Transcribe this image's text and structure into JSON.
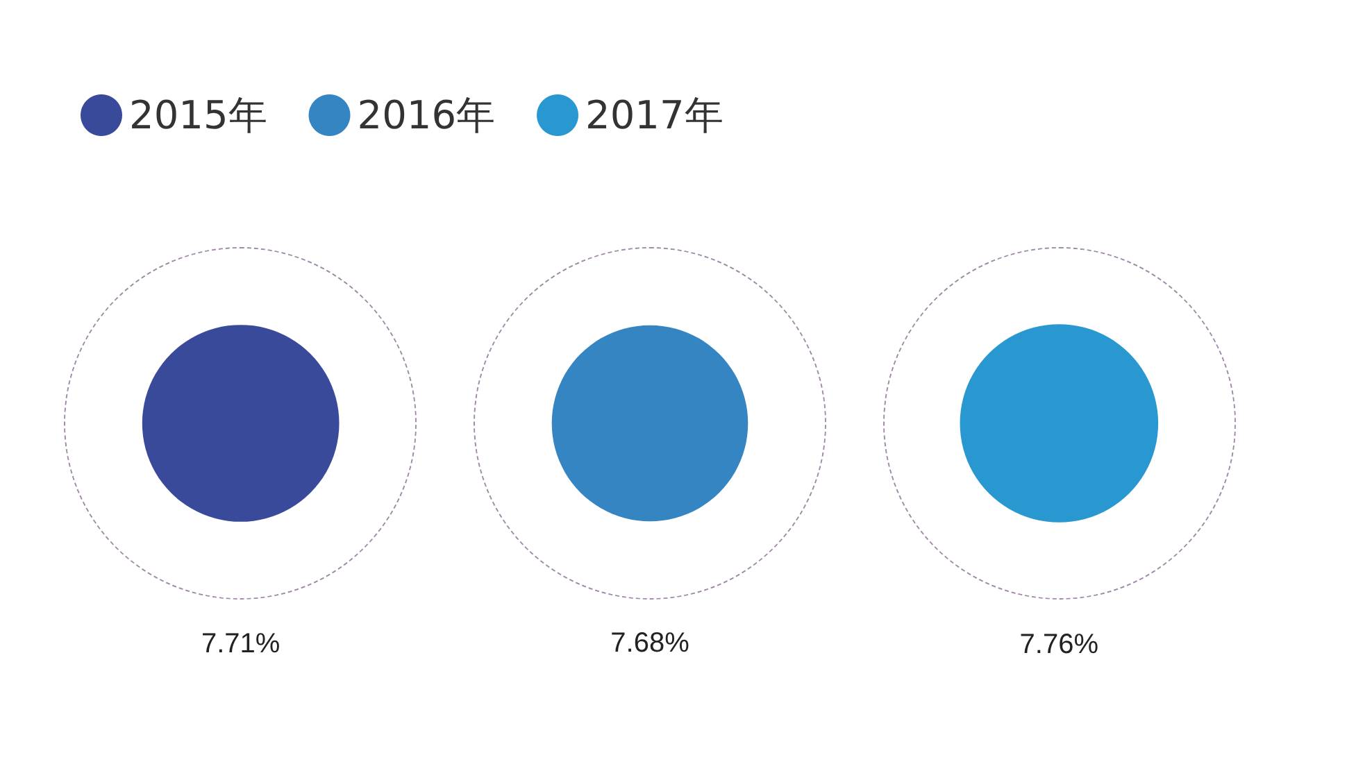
{
  "chart_data": {
    "type": "other",
    "categories": [
      "2015年",
      "2016年",
      "2017年"
    ],
    "values": [
      7.71,
      7.68,
      7.76
    ],
    "value_labels": [
      "7.71%",
      "7.68%",
      "7.76%"
    ],
    "colors": [
      "#3a4a9a",
      "#3585c3",
      "#2a98d0"
    ]
  }
}
